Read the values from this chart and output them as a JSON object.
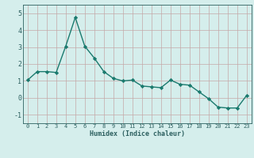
{
  "x": [
    0,
    1,
    2,
    3,
    4,
    5,
    6,
    7,
    8,
    9,
    10,
    11,
    12,
    13,
    14,
    15,
    16,
    17,
    18,
    19,
    20,
    21,
    22,
    23
  ],
  "y": [
    1.05,
    1.55,
    1.55,
    1.5,
    3.05,
    4.75,
    3.05,
    2.35,
    1.55,
    1.15,
    1.0,
    1.05,
    0.7,
    0.65,
    0.6,
    1.05,
    0.8,
    0.75,
    0.35,
    -0.05,
    -0.55,
    -0.6,
    -0.6,
    0.15
  ],
  "xlabel": "Humidex (Indice chaleur)",
  "xtick_labels": [
    "0",
    "1",
    "2",
    "3",
    "4",
    "5",
    "6",
    "7",
    "8",
    "9",
    "10",
    "11",
    "12",
    "13",
    "14",
    "15",
    "16",
    "17",
    "18",
    "19",
    "20",
    "21",
    "22",
    "23"
  ],
  "ylim": [
    -1.5,
    5.5
  ],
  "yticks": [
    -1,
    0,
    1,
    2,
    3,
    4,
    5
  ],
  "ytick_labels": [
    "-1",
    "0",
    "1",
    "2",
    "3",
    "4",
    "5"
  ],
  "line_color": "#1a7a6e",
  "marker": "D",
  "marker_size": 2.2,
  "bg_color": "#d5eeec",
  "grid_color": "#c4a8a8",
  "axis_color": "#2d6060",
  "xlabel_fontsize": 6.0,
  "tick_fontsize": 5.0,
  "linewidth": 1.0
}
